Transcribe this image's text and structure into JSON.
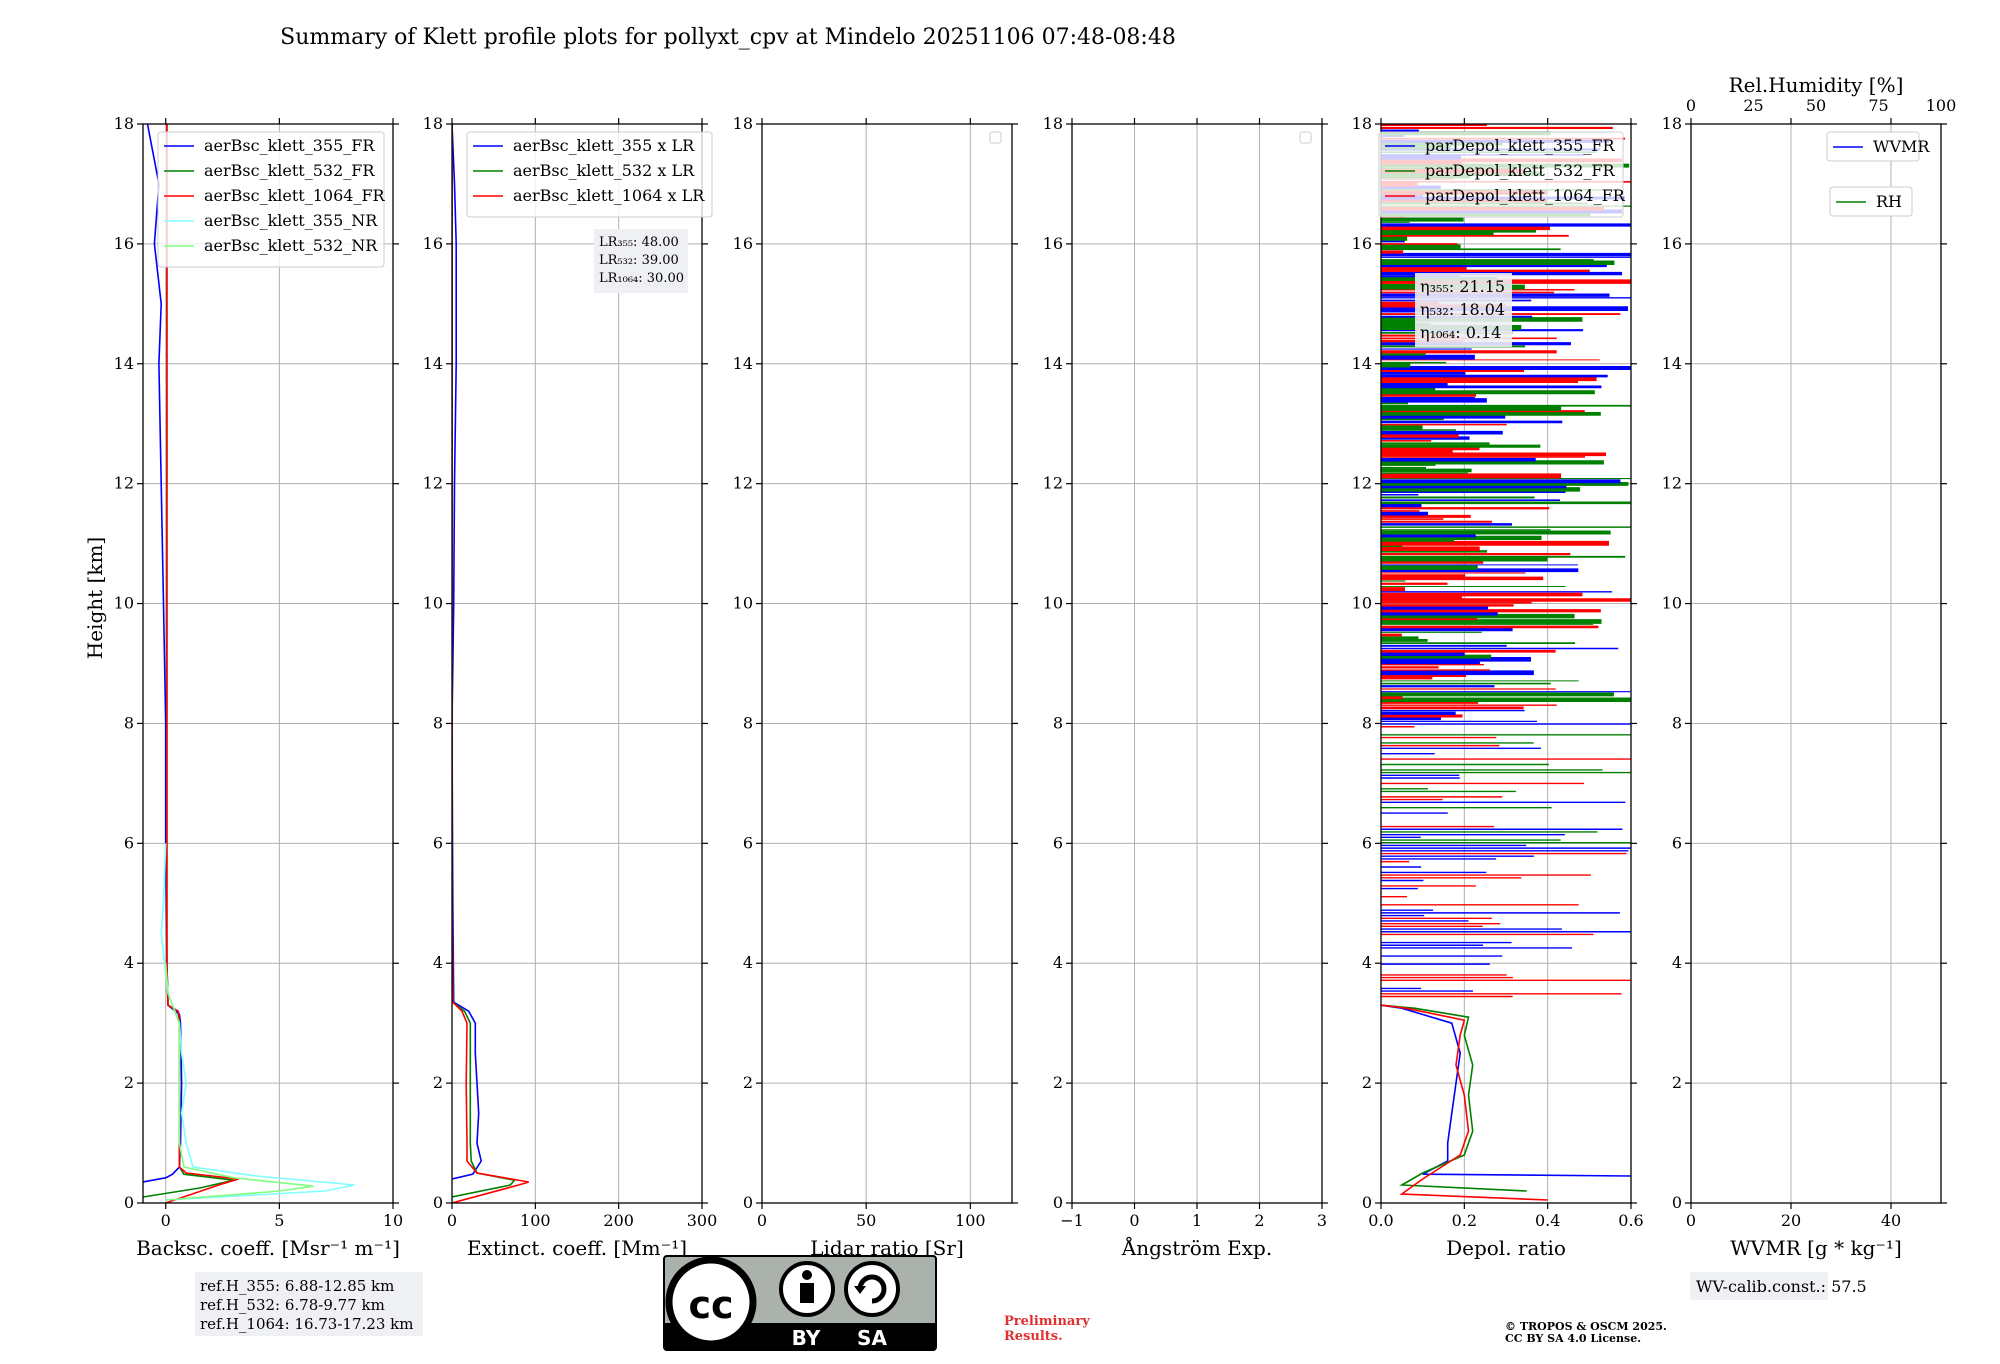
{
  "title": "Summary of Klett profile plots for pollyxt_cpv at Mindelo 20251106 07:48-08:48",
  "ylabel": "Height [km]",
  "yticks": [
    "0",
    "2",
    "4",
    "6",
    "8",
    "10",
    "12",
    "14",
    "16",
    "18"
  ],
  "chart_data": [
    {
      "type": "line",
      "xlabel": "Backsc. coeff. [Msr⁻¹ m⁻¹]",
      "xlim": [
        -1,
        10
      ],
      "ylim": [
        0,
        18
      ],
      "xticks": [
        "0",
        "5",
        "10"
      ],
      "legend": [
        "aerBsc_klett_355_FR",
        "aerBsc_klett_532_FR",
        "aerBsc_klett_1064_FR",
        "aerBsc_klett_355_NR",
        "aerBsc_klett_532_NR"
      ],
      "colors": [
        "#0000ff",
        "#008000",
        "#ff0000",
        "#80ffff",
        "#80ff80"
      ],
      "series": [
        {
          "name": "aerBsc_klett_355_FR",
          "points": [
            [
              -1,
              0.35
            ],
            [
              0,
              0.42
            ],
            [
              0.3,
              0.48
            ],
            [
              0.6,
              0.6
            ],
            [
              0.65,
              1
            ],
            [
              0.7,
              2
            ],
            [
              0.65,
              3
            ],
            [
              0.6,
              3.15
            ],
            [
              0.1,
              3.3
            ],
            [
              0.05,
              4
            ],
            [
              0,
              6
            ],
            [
              0,
              8
            ],
            [
              -0.1,
              10
            ],
            [
              -0.2,
              12
            ],
            [
              -0.3,
              14
            ],
            [
              -0.2,
              15
            ],
            [
              -0.5,
              16
            ],
            [
              -0.3,
              17
            ],
            [
              -0.8,
              18
            ]
          ]
        },
        {
          "name": "aerBsc_klett_532_FR",
          "points": [
            [
              -1,
              0.1
            ],
            [
              1.5,
              0.25
            ],
            [
              3,
              0.38
            ],
            [
              0.8,
              0.48
            ],
            [
              0.6,
              0.6
            ],
            [
              0.6,
              1
            ],
            [
              0.6,
              2
            ],
            [
              0.6,
              3
            ],
            [
              0.55,
              3.2
            ],
            [
              0.1,
              3.3
            ],
            [
              0.05,
              4
            ],
            [
              0.05,
              8
            ],
            [
              0.05,
              14
            ],
            [
              0.05,
              18
            ]
          ]
        },
        {
          "name": "aerBsc_klett_1064_FR",
          "points": [
            [
              0,
              0
            ],
            [
              2.5,
              0.32
            ],
            [
              3.2,
              0.4
            ],
            [
              0.9,
              0.5
            ],
            [
              0.6,
              0.6
            ],
            [
              0.6,
              1
            ],
            [
              0.6,
              2
            ],
            [
              0.6,
              3
            ],
            [
              0.55,
              3.2
            ],
            [
              0.1,
              3.3
            ],
            [
              0.05,
              4
            ],
            [
              0.05,
              10
            ],
            [
              0.05,
              16
            ],
            [
              0.05,
              18
            ]
          ]
        },
        {
          "name": "aerBsc_klett_355_NR",
          "points": [
            [
              0,
              0.05
            ],
            [
              7,
              0.2
            ],
            [
              8.3,
              0.3
            ],
            [
              4,
              0.45
            ],
            [
              1.2,
              0.6
            ],
            [
              0.9,
              1
            ],
            [
              0.7,
              1.5
            ],
            [
              0.9,
              2
            ],
            [
              0.7,
              2.5
            ],
            [
              0.6,
              3
            ],
            [
              0.1,
              3.5
            ],
            [
              -0.2,
              4.5
            ],
            [
              -0.1,
              5
            ],
            [
              0,
              6
            ]
          ]
        },
        {
          "name": "aerBsc_klett_532_NR",
          "points": [
            [
              0,
              0.05
            ],
            [
              5,
              0.2
            ],
            [
              6.5,
              0.28
            ],
            [
              3,
              0.42
            ],
            [
              0.8,
              0.6
            ],
            [
              0.6,
              1
            ],
            [
              0.6,
              2
            ],
            [
              0.6,
              3
            ],
            [
              0.1,
              3.5
            ],
            [
              0,
              4
            ]
          ]
        }
      ],
      "notes": {
        "ref355": "ref.H_355: 6.88-12.85 km",
        "ref532": "ref.H_532: 6.78-9.77 km",
        "ref1064": "ref.H_1064: 16.73-17.23 km"
      }
    },
    {
      "type": "line",
      "xlabel": "Extinct. coeff. [Mm⁻¹]",
      "xlim": [
        0,
        300
      ],
      "ylim": [
        0,
        18
      ],
      "xticks": [
        "0",
        "100",
        "200",
        "300"
      ],
      "legend": [
        "aerBsc_klett_355 x LR",
        "aerBsc_klett_532 x LR",
        "aerBsc_klett_1064 x LR"
      ],
      "colors": [
        "#0000ff",
        "#008000",
        "#ff0000"
      ],
      "series": [
        {
          "name": "aerBsc_klett_355 x LR",
          "points": [
            [
              0,
              0.4
            ],
            [
              25,
              0.48
            ],
            [
              35,
              0.7
            ],
            [
              30,
              1
            ],
            [
              32,
              1.5
            ],
            [
              30,
              2
            ],
            [
              28,
              2.5
            ],
            [
              28,
              3
            ],
            [
              20,
              3.2
            ],
            [
              2,
              3.35
            ],
            [
              1,
              5
            ],
            [
              0,
              8
            ],
            [
              2,
              10
            ],
            [
              3,
              12
            ],
            [
              5,
              14
            ],
            [
              5,
              16
            ],
            [
              3,
              17
            ],
            [
              0,
              18
            ]
          ]
        },
        {
          "name": "aerBsc_klett_532 x LR",
          "points": [
            [
              0,
              0.1
            ],
            [
              70,
              0.3
            ],
            [
              75,
              0.38
            ],
            [
              30,
              0.5
            ],
            [
              23,
              0.7
            ],
            [
              22,
              1
            ],
            [
              22,
              2
            ],
            [
              22,
              3
            ],
            [
              15,
              3.2
            ],
            [
              1,
              3.35
            ],
            [
              0,
              5
            ],
            [
              0,
              18
            ]
          ]
        },
        {
          "name": "aerBsc_klett_1064 x LR",
          "points": [
            [
              0,
              0
            ],
            [
              80,
              0.3
            ],
            [
              92,
              0.35
            ],
            [
              30,
              0.5
            ],
            [
              18,
              0.7
            ],
            [
              18,
              1
            ],
            [
              17,
              2
            ],
            [
              18,
              3
            ],
            [
              12,
              3.2
            ],
            [
              1,
              3.35
            ],
            [
              0,
              5
            ],
            [
              0,
              18
            ]
          ]
        }
      ],
      "notes": {
        "lr355": "LR₃₅₅: 48.00",
        "lr532": "LR₅₃₂: 39.00",
        "lr1064": "LR₁₀₆₄: 30.00"
      }
    },
    {
      "type": "line",
      "xlabel": "Lidar ratio [Sr]",
      "xlim": [
        0,
        120
      ],
      "ylim": [
        0,
        18
      ],
      "xticks": [
        "0",
        "50",
        "100"
      ],
      "series": []
    },
    {
      "type": "line",
      "xlabel": "Ångström Exp.",
      "xlim": [
        -1,
        3
      ],
      "ylim": [
        0,
        18
      ],
      "xticks": [
        "−1",
        "0",
        "1",
        "2",
        "3"
      ],
      "series": []
    },
    {
      "type": "line",
      "xlabel": "Depol. ratio",
      "xlim": [
        0,
        0.6
      ],
      "ylim": [
        0,
        18
      ],
      "xticks": [
        "0.0",
        "0.2",
        "0.4",
        "0.6"
      ],
      "legend": [
        "parDepol_klett_355_FR",
        "parDepol_klett_532_FR",
        "parDepol_klett_1064_FR"
      ],
      "colors": [
        "#0000ff",
        "#008000",
        "#ff0000"
      ],
      "series": [
        {
          "name": "parDepol_klett_355_FR",
          "points": [
            [
              0.6,
              0.45
            ],
            [
              0.1,
              0.48
            ],
            [
              0.16,
              0.7
            ],
            [
              0.16,
              1
            ],
            [
              0.17,
              1.5
            ],
            [
              0.18,
              2
            ],
            [
              0.19,
              2.5
            ],
            [
              0.17,
              3
            ],
            [
              0.05,
              3.25
            ],
            [
              0.0,
              3.3
            ]
          ]
        },
        {
          "name": "parDepol_klett_532_FR",
          "points": [
            [
              0.35,
              0.2
            ],
            [
              0.05,
              0.3
            ],
            [
              0.1,
              0.5
            ],
            [
              0.2,
              0.8
            ],
            [
              0.22,
              1.2
            ],
            [
              0.21,
              1.8
            ],
            [
              0.22,
              2.3
            ],
            [
              0.2,
              2.8
            ],
            [
              0.21,
              3.1
            ],
            [
              0.08,
              3.25
            ],
            [
              0.0,
              3.3
            ]
          ]
        },
        {
          "name": "parDepol_klett_1064_FR",
          "points": [
            [
              0.4,
              0.05
            ],
            [
              0.05,
              0.15
            ],
            [
              0.1,
              0.4
            ],
            [
              0.19,
              0.8
            ],
            [
              0.21,
              1.2
            ],
            [
              0.2,
              1.8
            ],
            [
              0.18,
              2.3
            ],
            [
              0.19,
              2.8
            ],
            [
              0.2,
              3.05
            ],
            [
              0.06,
              3.25
            ],
            [
              0.0,
              3.3
            ]
          ]
        }
      ],
      "notes": {
        "eta355": "η₃₅₅: 21.15",
        "eta532": "η₅₃₂: 18.04",
        "eta1064": "η₁₀₆₄: 0.14"
      }
    },
    {
      "type": "line",
      "xlabel": "WVMR [g * kg⁻¹]",
      "xlim": [
        0,
        50
      ],
      "ylim": [
        0,
        18
      ],
      "xticks": [
        "0",
        "20",
        "40"
      ],
      "top_xlabel": "Rel.Humidity [%]",
      "top_xticks": [
        "0",
        "25",
        "50",
        "75",
        "100"
      ],
      "legend": [
        "WVMR",
        "RH"
      ],
      "colors": [
        "#0000ff",
        "#008000"
      ],
      "series": [],
      "notes": {
        "wv": "WV-calib.const.: 57.5"
      }
    }
  ],
  "license": {
    "by": "BY",
    "sa": "SA",
    "cc": "cc"
  },
  "preliminary": {
    "line1": "Preliminary",
    "line2": "Results."
  },
  "copyright": {
    "line1": "© TROPOS & OSCM 2025.",
    "line2": "CC BY SA 4.0 License."
  }
}
